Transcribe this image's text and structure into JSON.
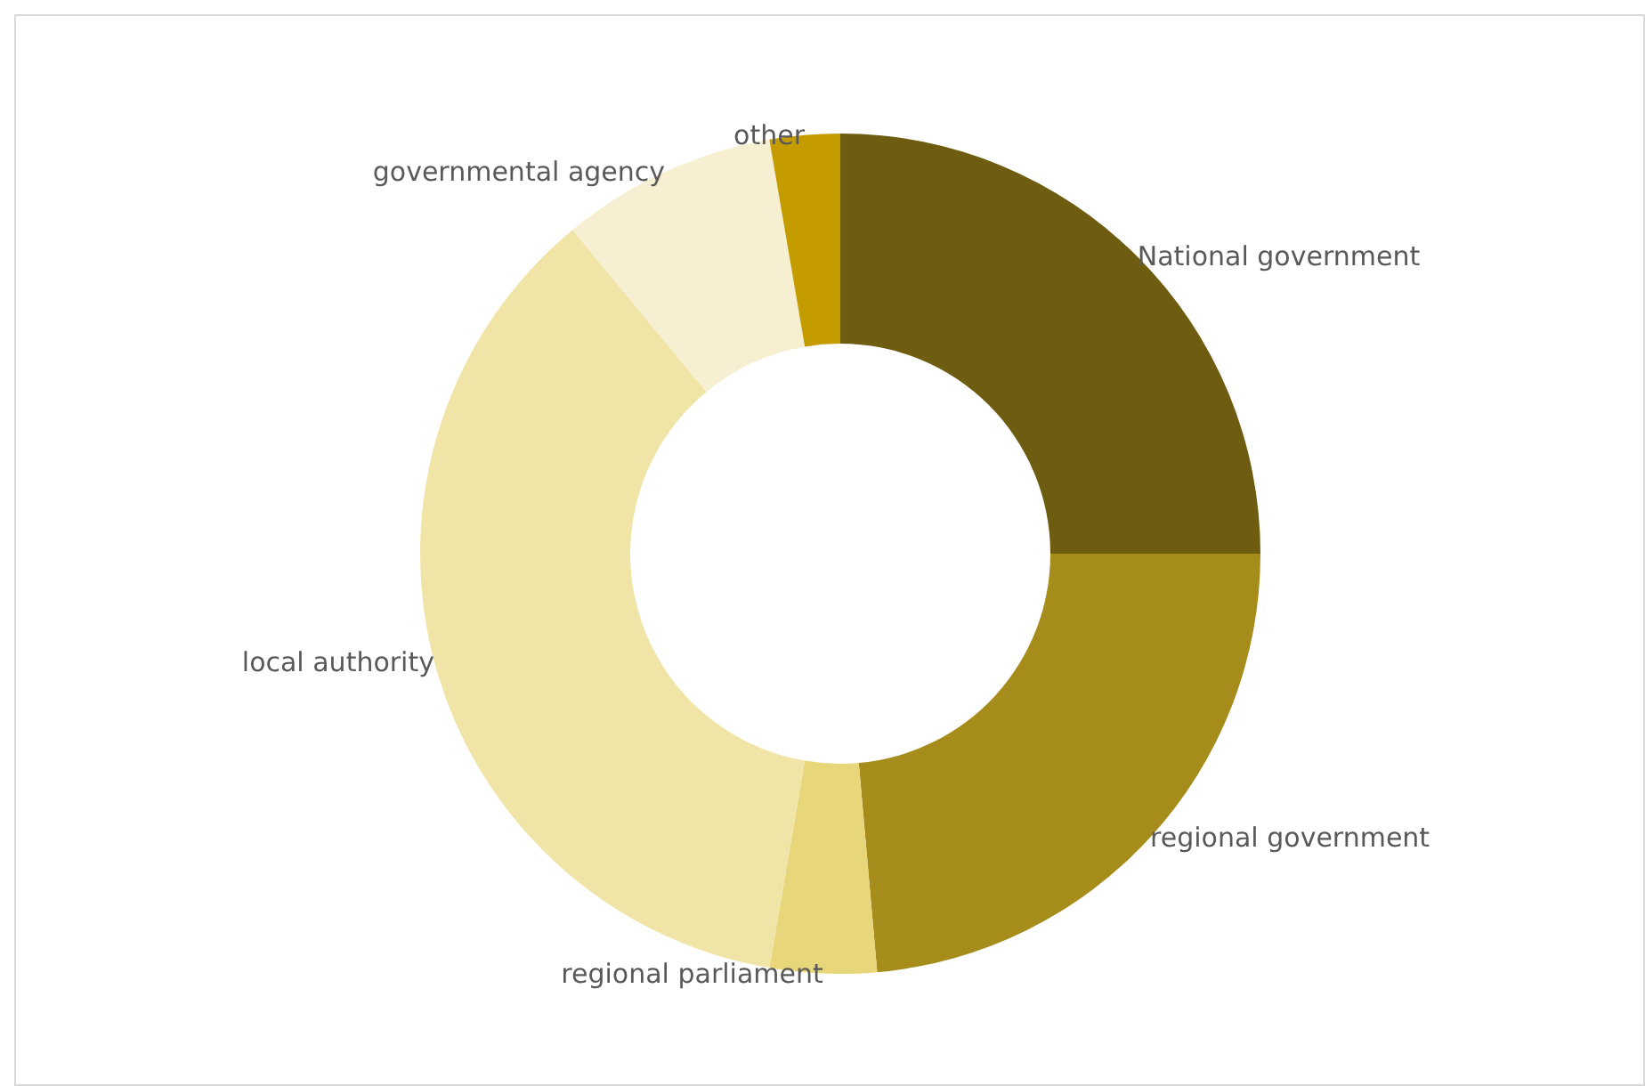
{
  "chart_data": {
    "type": "donut",
    "categories": [
      "National government",
      "regional government",
      "regional parliament",
      "local authority",
      "governmental agency",
      "other"
    ],
    "values": [
      25,
      23.6,
      4.1,
      36.3,
      8.3,
      2.7
    ],
    "colors": [
      "#6e5c10",
      "#a68c1a",
      "#e8d67a",
      "#f0e4a6",
      "#f7efd2",
      "#c49c00"
    ],
    "legend": false
  }
}
